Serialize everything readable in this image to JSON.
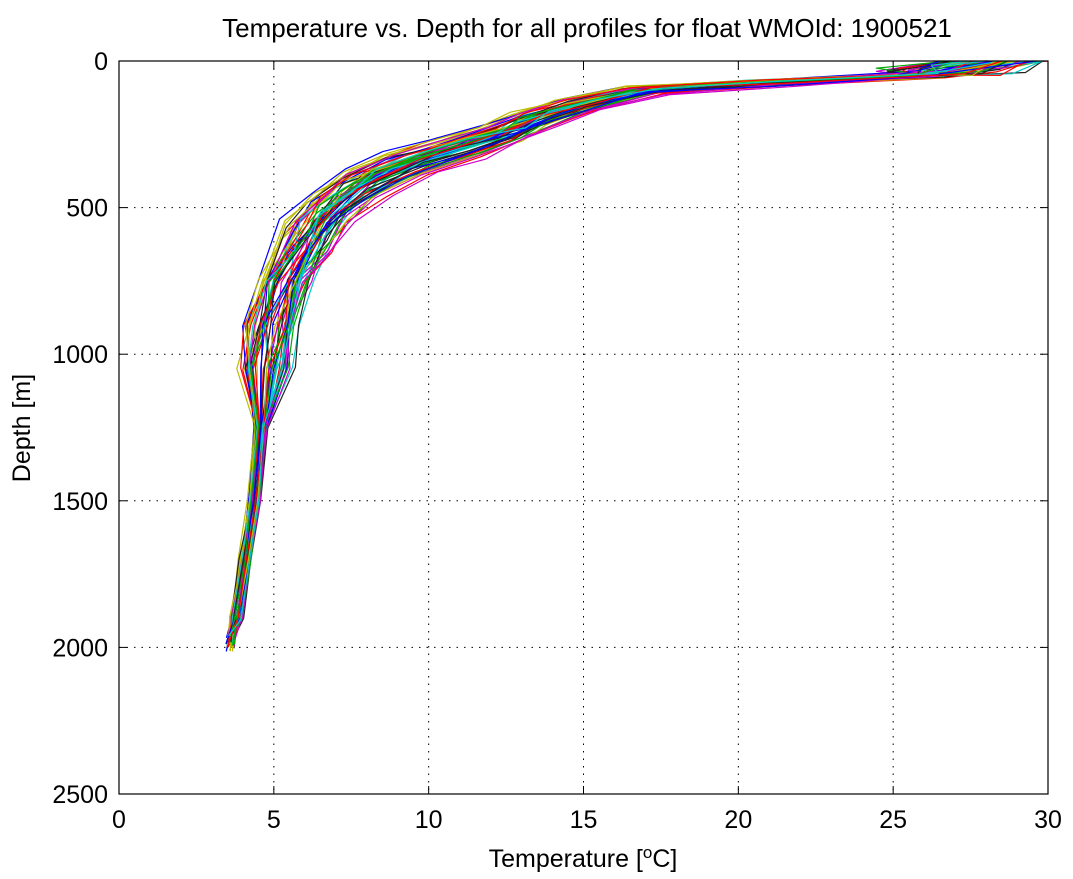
{
  "chart_data": {
    "type": "line",
    "title": "Temperature vs. Depth for all profiles for float WMOId: 1900521",
    "xlabel": "Temperature [",
    "xlabel_sup": "o",
    "xlabel_tail": "C]",
    "ylabel": "Depth [m]",
    "xlim": [
      0,
      30
    ],
    "ylim": [
      0,
      2500
    ],
    "y_reversed": true,
    "grid": true,
    "x_ticks": [
      0,
      5,
      10,
      15,
      20,
      25,
      30
    ],
    "y_ticks": [
      0,
      500,
      1000,
      1500,
      2000,
      2500
    ],
    "x_tick_labels": [
      "0",
      "5",
      "10",
      "15",
      "20",
      "25",
      "30"
    ],
    "y_tick_labels": [
      "0",
      "500",
      "1000",
      "1500",
      "2000",
      "2500"
    ],
    "series_colors": [
      "#0000ff",
      "#00aa00",
      "#ff0000",
      "#00cccc",
      "#cc00cc",
      "#bbbb00",
      "#222222"
    ],
    "profile_count": 60,
    "representative_profile": {
      "temperature": [
        29.8,
        28.5,
        26.0,
        21.0,
        17.0,
        15.0,
        13.5,
        12.5,
        11.0,
        9.5,
        8.0,
        7.0,
        6.2,
        5.4,
        5.0,
        4.8,
        4.6,
        4.4,
        4.1,
        3.8,
        3.6
      ],
      "depth": [
        0,
        20,
        50,
        75,
        100,
        150,
        200,
        250,
        300,
        350,
        420,
        500,
        600,
        750,
        900,
        1050,
        1250,
        1500,
        1700,
        1900,
        1990
      ]
    }
  }
}
